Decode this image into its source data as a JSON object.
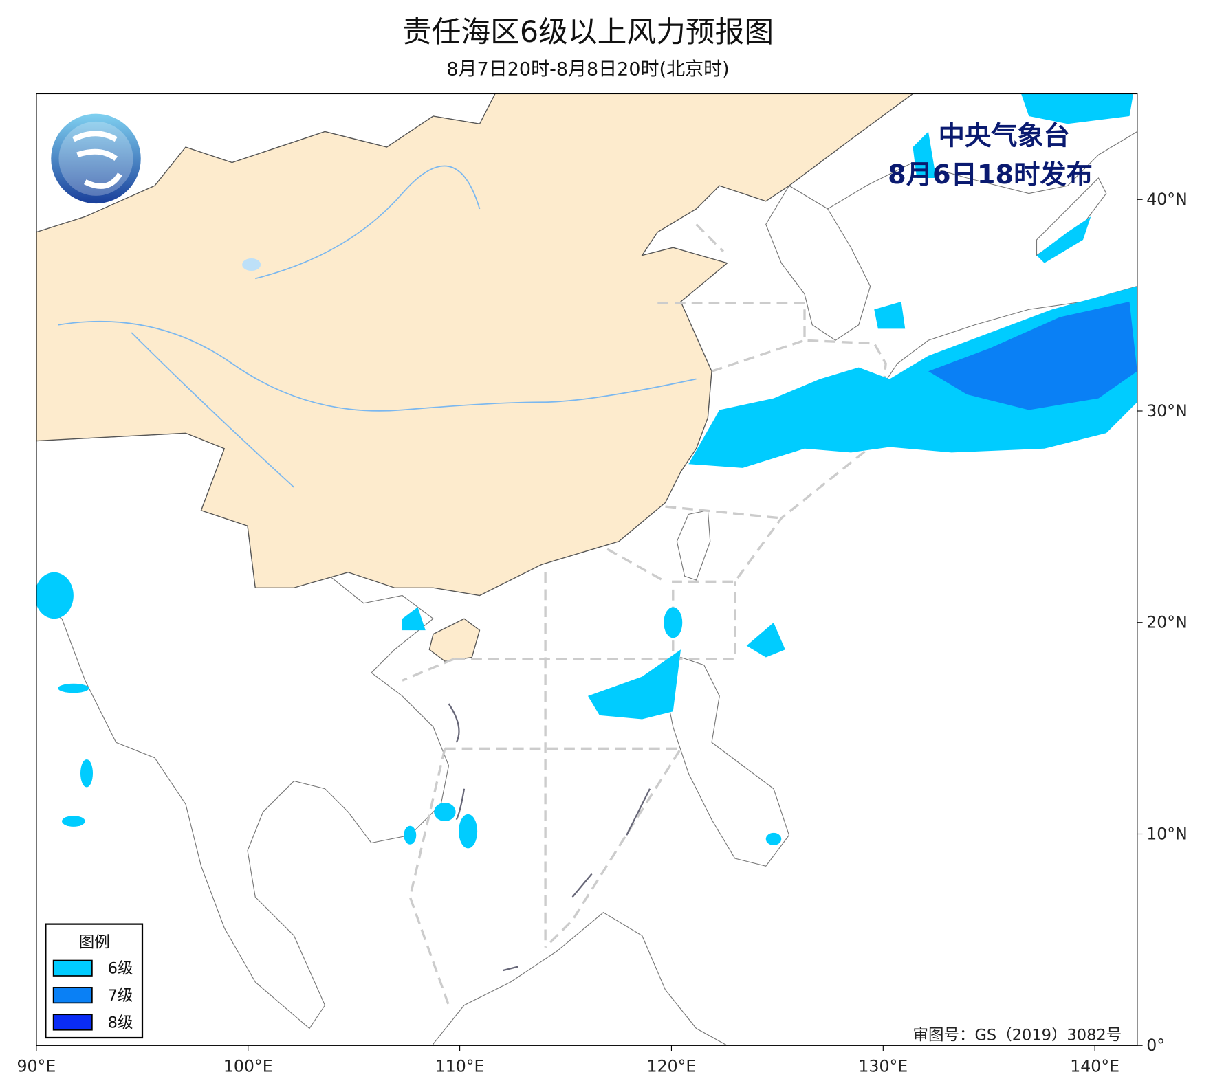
{
  "header": {
    "title": "责任海区6级以上风力预报图",
    "subtitle": "8月7日20时-8月8日20时(北京时)"
  },
  "issuer": {
    "agency": "中央气象台",
    "issued": "8月6日18时发布"
  },
  "legend": {
    "title": "图例",
    "items": [
      {
        "name": "6级",
        "color": "#00ccff"
      },
      {
        "name": "7级",
        "color": "#0a80f5"
      },
      {
        "name": "8级",
        "color": "#0a2cf5"
      }
    ]
  },
  "map": {
    "lonlim": [
      90,
      142
    ],
    "latlim": [
      0,
      45
    ],
    "lonticks": [
      {
        "value": 90,
        "label": "90°E"
      },
      {
        "value": 100,
        "label": "100°E"
      },
      {
        "value": 110,
        "label": "110°E"
      },
      {
        "value": 120,
        "label": "120°E"
      },
      {
        "value": 130,
        "label": "130°E"
      },
      {
        "value": 140,
        "label": "140°E"
      }
    ],
    "latticks": [
      {
        "value": 0,
        "label": "0°"
      },
      {
        "value": 10,
        "label": "10°N"
      },
      {
        "value": 20,
        "label": "20°N"
      },
      {
        "value": 30,
        "label": "30°N"
      },
      {
        "value": 40,
        "label": "40°N"
      }
    ]
  },
  "credit": "审图号：GS（2019）3082号"
}
